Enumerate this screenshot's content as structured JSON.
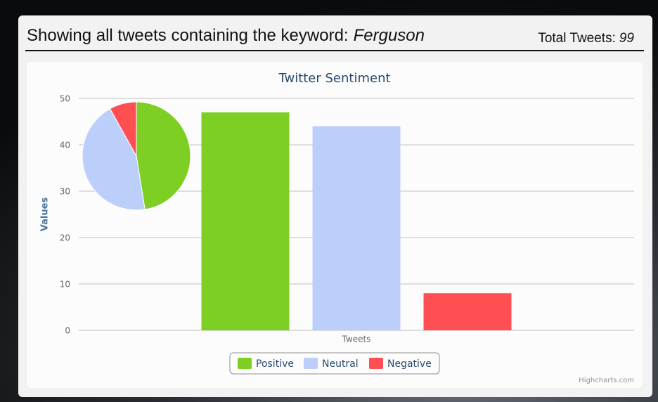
{
  "header": {
    "title": "Showing all tweets containing the keyword:",
    "keyword": "Ferguson",
    "total_label": "Total Tweets:",
    "total_value": 99
  },
  "chart_data": {
    "type": "bar",
    "title": "Twitter Sentiment",
    "y_label": "Values",
    "categories": [
      "Tweets"
    ],
    "series": [
      {
        "name": "Positive",
        "color": "#7ecf23",
        "values": [
          47
        ]
      },
      {
        "name": "Neutral",
        "color": "#bccffa",
        "values": [
          44
        ]
      },
      {
        "name": "Negative",
        "color": "#ff4f52",
        "values": [
          8
        ]
      }
    ],
    "ylim": [
      0,
      50
    ],
    "yticks": [
      0,
      10,
      20,
      30,
      40,
      50
    ],
    "grid": true,
    "legend": "bottom",
    "credits": "Highcharts.com"
  }
}
